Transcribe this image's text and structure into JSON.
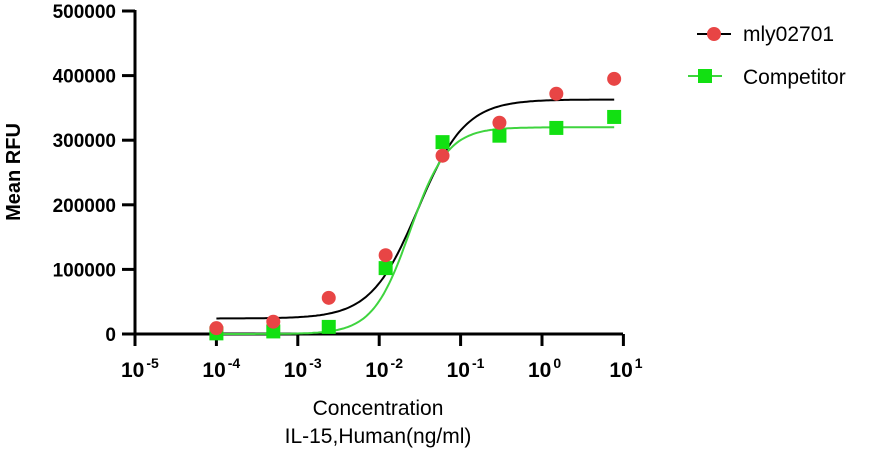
{
  "chart_data": {
    "type": "scatter",
    "title": "",
    "xlabel": "Concentration",
    "xlabel_line2": "IL-15,Human(ng/ml)",
    "ylabel": "Mean RFU",
    "xscale": "log",
    "xlim": [
      1e-05,
      10
    ],
    "ylim": [
      0,
      500000
    ],
    "yticks": [
      "500000",
      "400000",
      "300000",
      "200000",
      "100000",
      "0"
    ],
    "ytick_values": [
      500000,
      400000,
      300000,
      200000,
      100000,
      0
    ],
    "xticks": [
      {
        "base": "10",
        "exp": "-5",
        "value": 1e-05
      },
      {
        "base": "10",
        "exp": "-4",
        "value": 0.0001
      },
      {
        "base": "10",
        "exp": "-3",
        "value": 0.001
      },
      {
        "base": "10",
        "exp": "-2",
        "value": 0.01
      },
      {
        "base": "10",
        "exp": "-1",
        "value": 0.1
      },
      {
        "base": "10",
        "exp": "0",
        "value": 1
      },
      {
        "base": "10",
        "exp": "1",
        "value": 10
      }
    ],
    "legend_position": "top-right",
    "series": [
      {
        "name": "mly02701",
        "marker": "circle",
        "color": "#e84545",
        "line_color": "#000000",
        "x": [
          0.0001,
          0.0005,
          0.0024,
          0.012,
          0.06,
          0.3,
          1.5,
          7.7
        ],
        "y": [
          9000,
          19000,
          56000,
          122000,
          276000,
          327000,
          372000,
          395000
        ],
        "fit": {
          "bottom": 24000,
          "top": 363000,
          "ec50": 0.03,
          "hill": 1.5
        }
      },
      {
        "name": "Competitor",
        "marker": "square",
        "color": "#12e012",
        "line_color": "#3fd43f",
        "x": [
          0.0001,
          0.0005,
          0.0024,
          0.012,
          0.06,
          0.3,
          1.5,
          7.7
        ],
        "y": [
          1000,
          4000,
          11000,
          102000,
          297000,
          307000,
          319000,
          336000
        ],
        "fit": {
          "bottom": 0,
          "top": 320000,
          "ec50": 0.024,
          "hill": 1.9
        }
      }
    ]
  }
}
